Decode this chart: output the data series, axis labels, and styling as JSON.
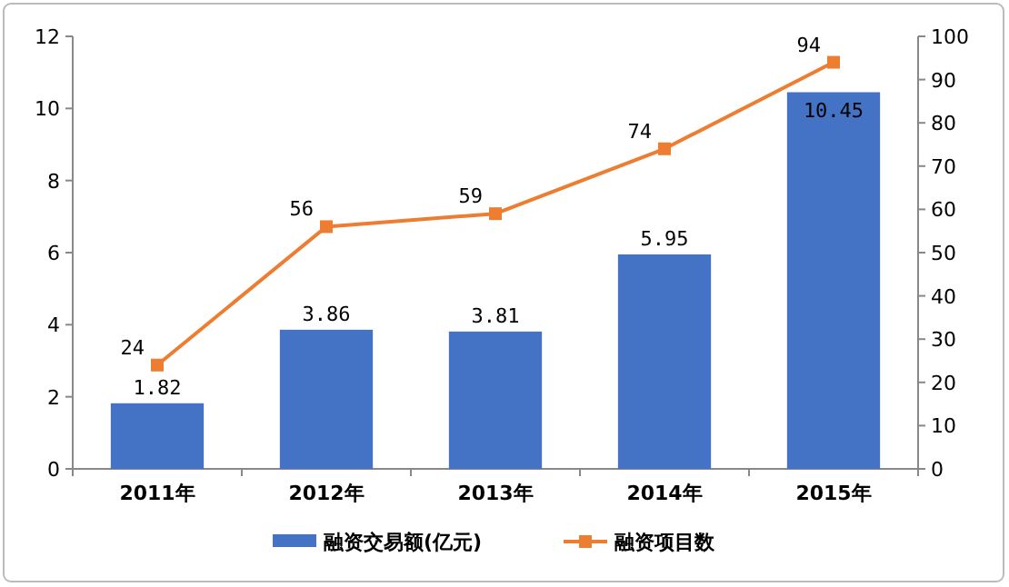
{
  "chart_data": {
    "type": "bar",
    "categories": [
      "2011年",
      "2012年",
      "2013年",
      "2014年",
      "2015年"
    ],
    "series": [
      {
        "name": "融资交易额(亿元)",
        "color": "#4472c4",
        "values": [
          1.82,
          3.86,
          3.81,
          5.95,
          10.45
        ]
      },
      {
        "name": "融资项目数",
        "color": "#ed7d31",
        "type": "line",
        "axis": "y2",
        "marker": "square",
        "values": [
          24,
          56,
          59,
          74,
          94
        ]
      }
    ],
    "ylim": [
      0,
      12
    ],
    "yticks": [
      0,
      2,
      4,
      6,
      8,
      10,
      12
    ],
    "y2lim": [
      0,
      100
    ],
    "y2ticks": [
      0,
      10,
      20,
      30,
      40,
      50,
      60,
      70,
      80,
      90,
      100
    ],
    "data_labels": true,
    "legend": "bottom",
    "grid": false
  }
}
